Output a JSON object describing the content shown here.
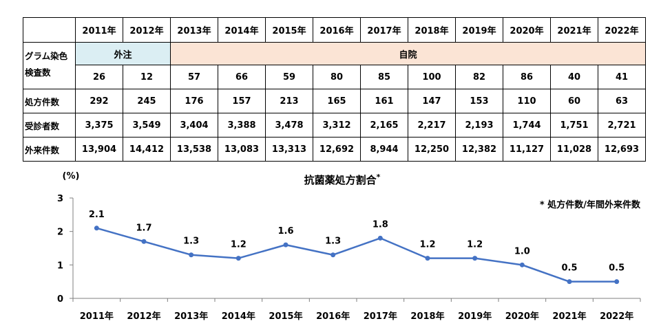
{
  "table": {
    "years": [
      "2011年",
      "2012年",
      "2013年",
      "2014年",
      "2015年",
      "2016年",
      "2017年",
      "2018年",
      "2019年",
      "2020年",
      "2021年",
      "2022年"
    ],
    "gram_label_line1": "グラム染色",
    "gram_label_line2": "検査数",
    "band_outside": "外注",
    "band_inhouse": "自院",
    "gram_counts": [
      "26",
      "12",
      "57",
      "66",
      "59",
      "80",
      "85",
      "100",
      "82",
      "86",
      "40",
      "41"
    ],
    "rows": [
      {
        "label": "処方件数",
        "values": [
          "292",
          "245",
          "176",
          "157",
          "213",
          "165",
          "161",
          "147",
          "153",
          "110",
          "60",
          "63"
        ]
      },
      {
        "label": "受診者数",
        "values": [
          "3,375",
          "3,549",
          "3,404",
          "3,388",
          "3,478",
          "3,312",
          "2,165",
          "2,217",
          "2,193",
          "1,744",
          "1,751",
          "2,721"
        ]
      },
      {
        "label": "外来件数",
        "values": [
          "13,904",
          "14,412",
          "13,538",
          "13,083",
          "13,313",
          "12,692",
          "8,944",
          "12,250",
          "12,382",
          "11,127",
          "11,028",
          "12,693"
        ]
      }
    ],
    "colors": {
      "outside_band": "#dbeef3",
      "inhouse_band": "#fbe4d5"
    }
  },
  "chart_data": {
    "type": "line",
    "title": "抗菌薬処方割合",
    "title_mark": "*",
    "note": "* 処方件数/年間外来件数",
    "ylabel": "(%)",
    "categories": [
      "2011年",
      "2012年",
      "2013年",
      "2014年",
      "2015年",
      "2016年",
      "2017年",
      "2018年",
      "2019年",
      "2020年",
      "2021年",
      "2022年"
    ],
    "values": [
      2.1,
      1.7,
      1.3,
      1.2,
      1.6,
      1.3,
      1.8,
      1.2,
      1.2,
      1.0,
      0.5,
      0.5
    ],
    "data_labels": [
      "2.1",
      "1.7",
      "1.3",
      "1.2",
      "1.6",
      "1.3",
      "1.8",
      "1.2",
      "1.2",
      "1.0",
      "0.5",
      "0.5"
    ],
    "ylim": [
      0,
      3
    ],
    "yticks": [
      0,
      1,
      2,
      3
    ],
    "grid": false,
    "legend": "none",
    "color": "#4472c4"
  }
}
